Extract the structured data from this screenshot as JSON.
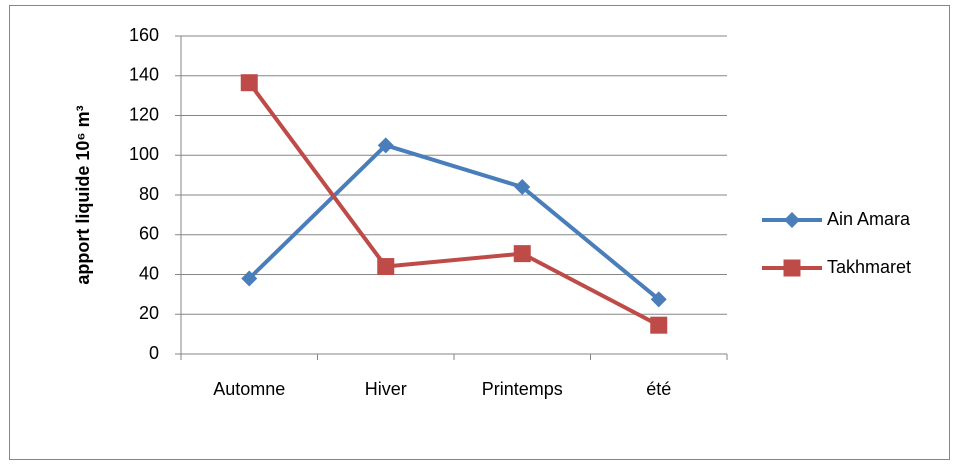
{
  "chart_data": {
    "type": "line",
    "y_label": "apport liquide 10⁶ m³",
    "categories": [
      "Automne",
      "Hiver",
      "Printemps",
      "été"
    ],
    "series": [
      {
        "name": "Ain Amara",
        "color": "#4a7ebb",
        "marker": "diamond",
        "values": [
          38,
          105,
          84,
          27.5
        ]
      },
      {
        "name": "Takhmaret",
        "color": "#be4b48",
        "marker": "square",
        "values": [
          136.5,
          44,
          50.5,
          14.5
        ]
      }
    ],
    "ylim": [
      0,
      160
    ],
    "yticks": [
      0,
      20,
      40,
      60,
      80,
      100,
      120,
      140,
      160
    ],
    "grid": true,
    "legend": "right"
  }
}
